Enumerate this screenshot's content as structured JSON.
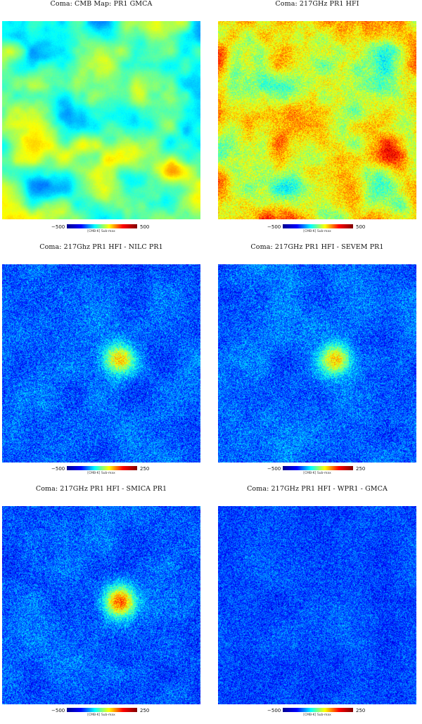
{
  "panels": [
    {
      "title": "Coma: CMB Map:  PR1  GMCA",
      "cmin": "−500",
      "cmax": "500",
      "unit": "[CMB-K] Sub-max",
      "mode": "cmb",
      "seed": 11
    },
    {
      "title": "Coma: 217GHz PR1  HFI",
      "cmin": "−500",
      "cmax": "500",
      "unit": "[CMB-K] Sub-max",
      "mode": "raw",
      "seed": 23
    },
    {
      "title": "Coma: 217Ghz PR1  HFI   - NILC  PR1",
      "cmin": "−500",
      "cmax": "250",
      "unit": "[CMB-K] Sub-max",
      "mode": "resid",
      "seed": 37
    },
    {
      "title": "Coma: 217GHz PR1  HFI  - SEVEM  PR1",
      "cmin": "−500",
      "cmax": "250",
      "unit": "[CMB-K] Sub-max",
      "mode": "resid",
      "seed": 41
    },
    {
      "title": "Coma: 217GHz PR1  HFI  - SMICA  PR1",
      "cmin": "−500",
      "cmax": "250",
      "unit": "[CMB-K] Sub-max",
      "mode": "resid2",
      "seed": 53
    },
    {
      "title": "Coma: 217GHz PR1  HFI  - WPR1  - GMCA",
      "cmin": "−500",
      "cmax": "250",
      "unit": "[CMB-K] Sub-max",
      "mode": "flat",
      "seed": 67
    }
  ]
}
